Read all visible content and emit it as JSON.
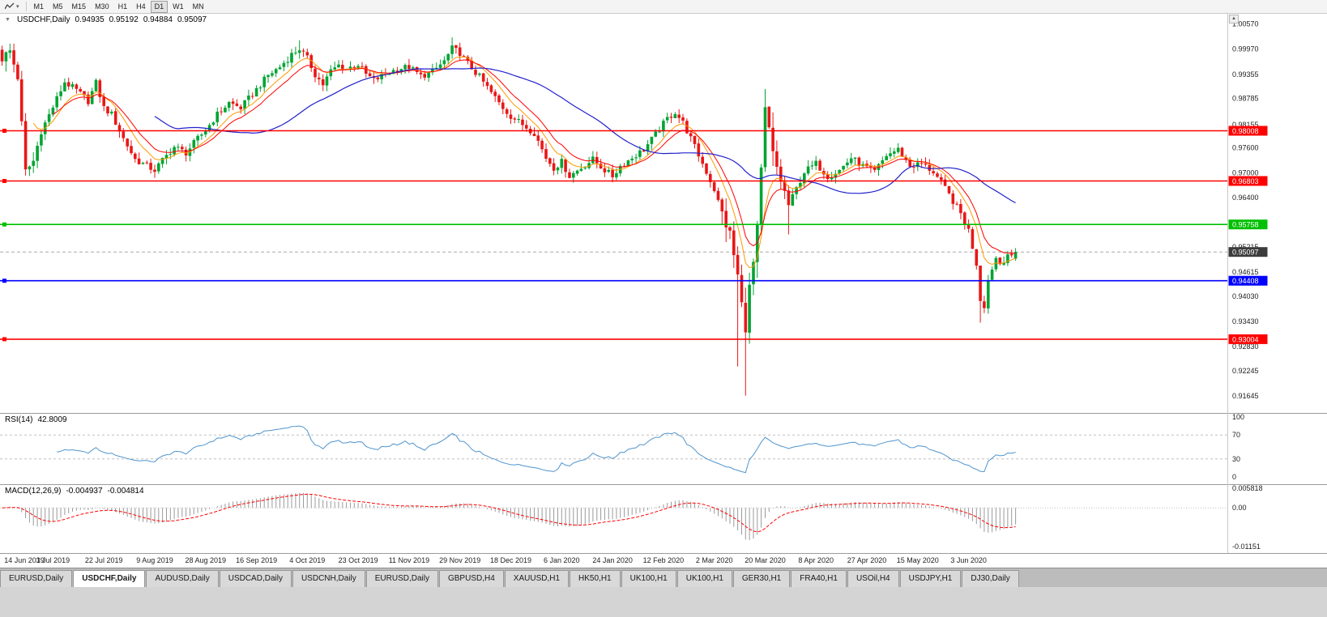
{
  "toolbar": {
    "timeframes": [
      "M1",
      "M5",
      "M15",
      "M30",
      "H1",
      "H4",
      "D1",
      "W1",
      "MN"
    ],
    "active": "D1"
  },
  "icons": {
    "caret_down": "▾",
    "collapse": "▼",
    "scroll_up": "▲"
  },
  "chart": {
    "title": "USDCHF,Daily",
    "ohlc": {
      "open": "0.94935",
      "high": "0.95192",
      "low": "0.94884",
      "close": "0.95097"
    },
    "current_price": "0.95097",
    "axis_labels": [
      "1.00570",
      "0.99970",
      "0.99355",
      "0.98785",
      "0.98155",
      "0.97600",
      "0.97000",
      "0.96400",
      "0.95215",
      "0.94615",
      "0.94030",
      "0.93430",
      "0.92830",
      "0.92245",
      "0.91645"
    ],
    "hlines": [
      {
        "price": 0.98008,
        "label": "0.98008",
        "color": "#ff0000"
      },
      {
        "price": 0.96803,
        "label": "0.96803",
        "color": "#ff0000"
      },
      {
        "price": 0.95758,
        "label": "0.95758",
        "color": "#00c000"
      },
      {
        "price": 0.94408,
        "label": "0.94408",
        "color": "#0000ff"
      },
      {
        "price": 0.93004,
        "label": "0.93004",
        "color": "#ff0000"
      }
    ]
  },
  "chart_data": {
    "type": "candlestick",
    "symbol": "USDCHF",
    "timeframe": "Daily",
    "count": 260,
    "price_range": {
      "min": 0.9135,
      "max": 1.007
    },
    "anchors": [
      [
        0,
        0.9975
      ],
      [
        2,
        0.9992
      ],
      [
        4,
        0.993
      ],
      [
        6,
        0.9702
      ],
      [
        8,
        0.9728
      ],
      [
        10,
        0.98
      ],
      [
        13,
        0.9858
      ],
      [
        16,
        0.9918
      ],
      [
        19,
        0.9898
      ],
      [
        22,
        0.9872
      ],
      [
        24,
        0.9916
      ],
      [
        26,
        0.9856
      ],
      [
        28,
        0.984
      ],
      [
        31,
        0.9782
      ],
      [
        34,
        0.9732
      ],
      [
        37,
        0.9716
      ],
      [
        39,
        0.9706
      ],
      [
        41,
        0.973
      ],
      [
        44,
        0.9762
      ],
      [
        47,
        0.9748
      ],
      [
        50,
        0.9782
      ],
      [
        52,
        0.9802
      ],
      [
        55,
        0.984
      ],
      [
        58,
        0.9868
      ],
      [
        61,
        0.9856
      ],
      [
        65,
        0.99
      ],
      [
        68,
        0.9934
      ],
      [
        71,
        0.9954
      ],
      [
        74,
        0.9984
      ],
      [
        76,
        0.9998
      ],
      [
        78,
        0.9974
      ],
      [
        80,
        0.9936
      ],
      [
        82,
        0.9912
      ],
      [
        84,
        0.9944
      ],
      [
        86,
        0.9958
      ],
      [
        88,
        0.995
      ],
      [
        91,
        0.996
      ],
      [
        93,
        0.9936
      ],
      [
        95,
        0.9922
      ],
      [
        98,
        0.9936
      ],
      [
        101,
        0.995
      ],
      [
        104,
        0.9954
      ],
      [
        107,
        0.9932
      ],
      [
        110,
        0.9942
      ],
      [
        113,
        0.9968
      ],
      [
        115,
        0.9998
      ],
      [
        117,
        0.9988
      ],
      [
        119,
        0.9962
      ],
      [
        122,
        0.993
      ],
      [
        125,
        0.9892
      ],
      [
        128,
        0.9856
      ],
      [
        130,
        0.9836
      ],
      [
        133,
        0.9816
      ],
      [
        136,
        0.9796
      ],
      [
        139,
        0.9736
      ],
      [
        141,
        0.9712
      ],
      [
        143,
        0.9726
      ],
      [
        145,
        0.9692
      ],
      [
        148,
        0.9712
      ],
      [
        151,
        0.9732
      ],
      [
        154,
        0.9706
      ],
      [
        156,
        0.9692
      ],
      [
        158,
        0.9716
      ],
      [
        161,
        0.9736
      ],
      [
        164,
        0.9756
      ],
      [
        167,
        0.9792
      ],
      [
        170,
        0.983
      ],
      [
        172,
        0.9846
      ],
      [
        174,
        0.982
      ],
      [
        176,
        0.9782
      ],
      [
        178,
        0.9742
      ],
      [
        180,
        0.9702
      ],
      [
        182,
        0.966
      ],
      [
        184,
        0.9602
      ],
      [
        186,
        0.9552
      ],
      [
        188,
        0.9452
      ],
      [
        189,
        0.9382
      ],
      [
        190,
        0.9332
      ],
      [
        191,
        0.9422
      ],
      [
        192,
        0.9482
      ],
      [
        193,
        0.9562
      ],
      [
        194,
        0.9702
      ],
      [
        195,
        0.9848
      ],
      [
        196,
        0.9802
      ],
      [
        197,
        0.9742
      ],
      [
        199,
        0.9682
      ],
      [
        201,
        0.9622
      ],
      [
        203,
        0.9662
      ],
      [
        205,
        0.9702
      ],
      [
        208,
        0.9722
      ],
      [
        211,
        0.9692
      ],
      [
        214,
        0.9706
      ],
      [
        217,
        0.9736
      ],
      [
        220,
        0.9716
      ],
      [
        223,
        0.9702
      ],
      [
        226,
        0.9742
      ],
      [
        229,
        0.9756
      ],
      [
        232,
        0.9716
      ],
      [
        235,
        0.9722
      ],
      [
        238,
        0.9702
      ],
      [
        241,
        0.9662
      ],
      [
        243,
        0.9632
      ],
      [
        245,
        0.9602
      ],
      [
        247,
        0.9562
      ],
      [
        249,
        0.9482
      ],
      [
        250,
        0.9396
      ],
      [
        251,
        0.9382
      ],
      [
        252,
        0.9442
      ],
      [
        253,
        0.9472
      ],
      [
        254,
        0.9496
      ],
      [
        255,
        0.9482
      ],
      [
        256,
        0.9492
      ],
      [
        257,
        0.9506
      ],
      [
        258,
        0.9494
      ],
      [
        259,
        0.951
      ]
    ],
    "spikes": [
      {
        "i": 0,
        "high": 1.0005
      },
      {
        "i": 6,
        "low": 0.9693
      },
      {
        "i": 76,
        "high": 1.0018
      },
      {
        "i": 115,
        "high": 1.0025
      },
      {
        "i": 188,
        "low": 0.9235
      },
      {
        "i": 190,
        "low": 0.9165
      },
      {
        "i": 195,
        "high": 0.9901
      },
      {
        "i": 201,
        "low": 0.9552
      },
      {
        "i": 250,
        "low": 0.934
      }
    ],
    "last_candle": {
      "o": 0.94935,
      "h": 0.95192,
      "l": 0.94884,
      "c": 0.95097
    },
    "x_labels": [
      {
        "i": 0,
        "t": "14 Jun 2019"
      },
      {
        "i": 13,
        "t": "3 Jul 2019"
      },
      {
        "i": 26,
        "t": "22 Jul 2019"
      },
      {
        "i": 39,
        "t": "9 Aug 2019"
      },
      {
        "i": 52,
        "t": "28 Aug 2019"
      },
      {
        "i": 65,
        "t": "16 Sep 2019"
      },
      {
        "i": 78,
        "t": "4 Oct 2019"
      },
      {
        "i": 91,
        "t": "23 Oct 2019"
      },
      {
        "i": 104,
        "t": "11 Nov 2019"
      },
      {
        "i": 117,
        "t": "29 Nov 2019"
      },
      {
        "i": 130,
        "t": "18 Dec 2019"
      },
      {
        "i": 143,
        "t": "6 Jan 2020"
      },
      {
        "i": 156,
        "t": "24 Jan 2020"
      },
      {
        "i": 169,
        "t": "12 Feb 2020"
      },
      {
        "i": 182,
        "t": "2 Mar 2020"
      },
      {
        "i": 195,
        "t": "20 Mar 2020"
      },
      {
        "i": 208,
        "t": "8 Apr 2020"
      },
      {
        "i": 221,
        "t": "27 Apr 2020"
      },
      {
        "i": 234,
        "t": "15 May 2020"
      },
      {
        "i": 247,
        "t": "3 Jun 2020"
      }
    ]
  },
  "rsi": {
    "label": "RSI(14)",
    "value": "42.8009",
    "period": 14,
    "axis": [
      "100",
      "70",
      "30",
      "0"
    ],
    "levels": [
      70,
      30
    ]
  },
  "macd": {
    "label": "MACD(12,26,9)",
    "value_macd": "-0.004937",
    "value_signal": "-0.004814",
    "axis_max": "0.005818",
    "axis_zero": "0.00",
    "axis_min": "-0.01151",
    "range": {
      "min": -0.01151,
      "max": 0.005818
    }
  },
  "tabs": [
    {
      "label": "EURUSD,Daily",
      "active": false
    },
    {
      "label": "USDCHF,Daily",
      "active": true
    },
    {
      "label": "AUDUSD,Daily",
      "active": false
    },
    {
      "label": "USDCAD,Daily",
      "active": false
    },
    {
      "label": "USDCNH,Daily",
      "active": false
    },
    {
      "label": "EURUSD,Daily",
      "active": false
    },
    {
      "label": "GBPUSD,H4",
      "active": false
    },
    {
      "label": "XAUUSD,H1",
      "active": false
    },
    {
      "label": "HK50,H1",
      "active": false
    },
    {
      "label": "UK100,H1",
      "active": false
    },
    {
      "label": "UK100,H1",
      "active": false
    },
    {
      "label": "GER30,H1",
      "active": false
    },
    {
      "label": "FRA40,H1",
      "active": false
    },
    {
      "label": "USOil,H4",
      "active": false
    },
    {
      "label": "USDJPY,H1",
      "active": false
    },
    {
      "label": "DJ30,Daily",
      "active": false
    }
  ],
  "colors": {
    "candle_up": "#00a432",
    "candle_down": "#e81717",
    "ma_fast": "#ff9900",
    "ma_mid": "#ff0000",
    "ma_slow": "#2121cc",
    "rsi": "#4f94cd",
    "macd_bar": "#9a9a9a",
    "macd_signal": "#ff0000",
    "current_chip": "#3c3c3c",
    "grid": "#c0c0c0"
  }
}
